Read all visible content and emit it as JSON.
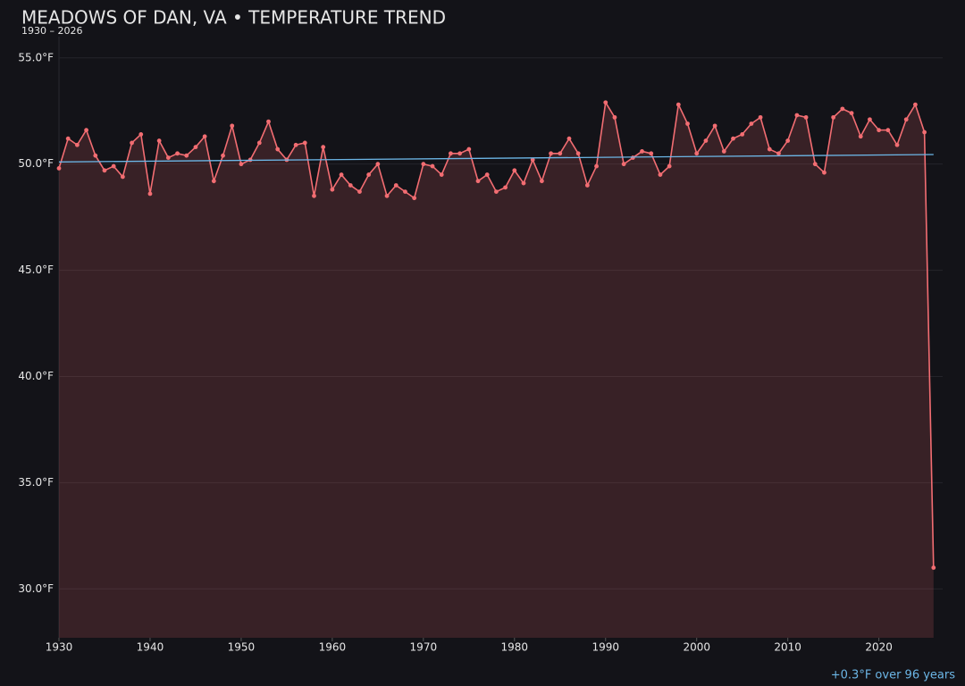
{
  "chart_data": {
    "type": "line",
    "title": "MEADOWS OF DAN, VA • TEMPERATURE TREND",
    "subtitle": "1930 – 2026",
    "annotation": "+0.3°F over 96 years",
    "x": [
      1930,
      1931,
      1932,
      1933,
      1934,
      1935,
      1936,
      1937,
      1938,
      1939,
      1940,
      1941,
      1942,
      1943,
      1944,
      1945,
      1946,
      1947,
      1948,
      1949,
      1950,
      1951,
      1952,
      1953,
      1954,
      1955,
      1956,
      1957,
      1958,
      1959,
      1960,
      1961,
      1962,
      1963,
      1964,
      1965,
      1966,
      1967,
      1968,
      1969,
      1970,
      1971,
      1972,
      1973,
      1974,
      1975,
      1976,
      1977,
      1978,
      1979,
      1980,
      1981,
      1982,
      1983,
      1984,
      1985,
      1986,
      1987,
      1988,
      1989,
      1990,
      1991,
      1992,
      1993,
      1994,
      1995,
      1996,
      1997,
      1998,
      1999,
      2000,
      2001,
      2002,
      2003,
      2004,
      2005,
      2006,
      2007,
      2008,
      2009,
      2010,
      2011,
      2012,
      2013,
      2014,
      2015,
      2016,
      2017,
      2018,
      2019,
      2020,
      2021,
      2022,
      2023,
      2024,
      2025,
      2026
    ],
    "series": [
      {
        "color": "#f26d72",
        "values": [
          49.8,
          51.2,
          50.9,
          51.6,
          50.4,
          49.7,
          49.9,
          49.4,
          51.0,
          51.4,
          48.6,
          51.1,
          50.3,
          50.5,
          50.4,
          50.8,
          51.3,
          49.2,
          50.4,
          51.8,
          50.0,
          50.2,
          51.0,
          52.0,
          50.7,
          50.2,
          50.9,
          51.0,
          48.5,
          50.8,
          48.8,
          49.5,
          49.0,
          48.7,
          49.5,
          50.0,
          48.5,
          49.0,
          48.7,
          48.4,
          50.0,
          49.9,
          49.5,
          50.5,
          50.5,
          50.7,
          49.2,
          49.5,
          48.7,
          48.9,
          49.7,
          49.1,
          50.2,
          49.2,
          50.5,
          50.5,
          51.2,
          50.5,
          49.0,
          49.9,
          52.9,
          52.2,
          50.0,
          50.3,
          50.6,
          50.5,
          49.5,
          49.9,
          52.8,
          51.9,
          50.5,
          51.1,
          51.8,
          50.6,
          51.2,
          51.4,
          51.9,
          52.2,
          50.7,
          50.5,
          51.1,
          52.3,
          52.2,
          50.0,
          49.6,
          52.2,
          52.6,
          52.4,
          51.3,
          52.1,
          51.6,
          51.6,
          50.9,
          52.1,
          52.8,
          51.5,
          31.0
        ]
      }
    ],
    "trend": {
      "color": "#6cb6e6",
      "x": [
        1930,
        2026
      ],
      "values": [
        50.1,
        50.45
      ]
    },
    "xlim": [
      1930,
      2027
    ],
    "xticks": [
      1930,
      1940,
      1950,
      1960,
      1970,
      1980,
      1990,
      2000,
      2010,
      2020
    ],
    "ylim": [
      27.7,
      56.0
    ],
    "yticks": [
      {
        "value": 30,
        "label": "30.0°F"
      },
      {
        "value": 35,
        "label": "35.0°F"
      },
      {
        "value": 40,
        "label": "40.0°F"
      },
      {
        "value": 45,
        "label": "45.0°F"
      },
      {
        "value": 50,
        "label": "50.0°F"
      },
      {
        "value": 55,
        "label": "55.0°F"
      }
    ],
    "grid": true
  }
}
